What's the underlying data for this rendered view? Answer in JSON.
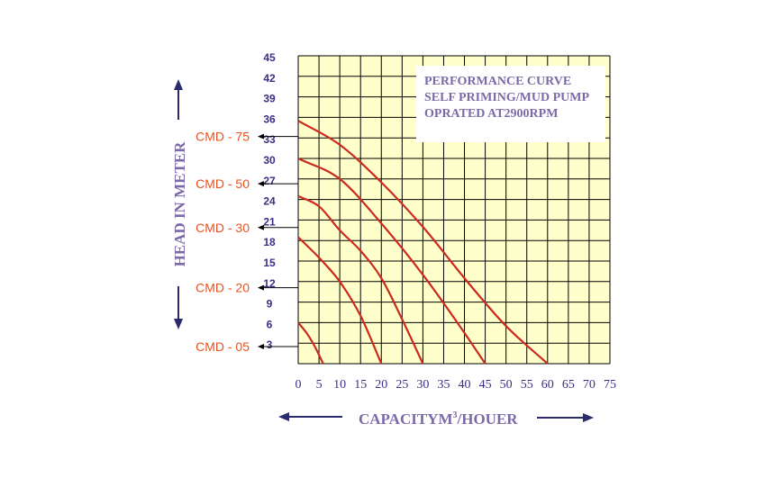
{
  "chart_data": {
    "type": "line",
    "title_lines": [
      "PERFORMANCE CURVE",
      "SELF PRIMING/MUD PUMP",
      "OPRATED AT2900RPM"
    ],
    "ylabel": "HEAD IN METER",
    "xlabel_main": "CAPACITYM",
    "xlabel_sup": "3",
    "xlabel_tail": "/HOUER",
    "yticks": [
      3,
      6,
      9,
      12,
      15,
      18,
      21,
      24,
      27,
      30,
      33,
      36,
      39,
      42,
      45
    ],
    "xticks": [
      0,
      5,
      10,
      15,
      20,
      25,
      30,
      35,
      40,
      45,
      50,
      55,
      60,
      65,
      70,
      75
    ],
    "xlim": [
      0,
      75
    ],
    "ylim": [
      0,
      45
    ],
    "grid": true,
    "colors": {
      "plot_bg": "#ffffcc",
      "grid": "#000000",
      "curve": "#cc2a1e",
      "model_label": "#e8521e",
      "tick": "#3b2f86",
      "axis_label": "#7b6aa8",
      "arrow": "#2a2a6e"
    },
    "series": [
      {
        "name": "CMD - 75",
        "x": [
          0,
          10,
          20,
          30,
          40,
          50,
          60
        ],
        "y": [
          35.5,
          32,
          26.5,
          20,
          12.5,
          5.5,
          0
        ],
        "label_y": 33.2
      },
      {
        "name": "CMD - 50",
        "x": [
          0,
          10,
          20,
          30,
          40,
          45
        ],
        "y": [
          30,
          27,
          20.5,
          13,
          4.5,
          0
        ],
        "label_y": 26.3
      },
      {
        "name": "CMD - 30",
        "x": [
          0,
          5,
          10,
          15,
          20,
          25,
          30
        ],
        "y": [
          24.5,
          23,
          19.5,
          16.5,
          12.5,
          6.5,
          0
        ],
        "label_y": 19.9
      },
      {
        "name": "CMD - 20",
        "x": [
          0,
          5,
          10,
          15,
          20
        ],
        "y": [
          18.5,
          15.5,
          12,
          7,
          0
        ],
        "label_y": 11.1
      },
      {
        "name": "CMD - 05",
        "x": [
          0,
          2,
          4,
          6
        ],
        "y": [
          6,
          4.5,
          2.5,
          0
        ],
        "label_y": 2.5
      }
    ]
  }
}
